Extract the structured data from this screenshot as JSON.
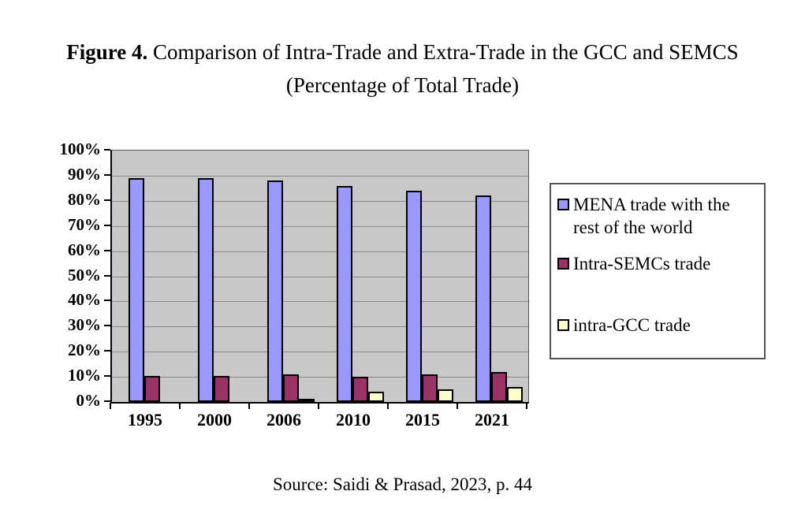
{
  "page": {
    "figure_label": "Figure 4.",
    "title_rest": " Comparison of Intra-Trade and Extra-Trade in the GCC and SEMCS",
    "title_line2": "(Percentage of Total Trade)",
    "source": "Source: Saidi & Prasad, 2023, p. 44"
  },
  "chart_data": {
    "type": "bar",
    "title": "Figure 4. Comparison of Intra-Trade and Extra-Trade in the GCC and SEMCS (Percentage of Total Trade)",
    "categories": [
      "1995",
      "2000",
      "2006",
      "2010",
      "2015",
      "2021"
    ],
    "series": [
      {
        "name": "MENA trade with the rest of the world",
        "color": "#9999FF",
        "values": [
          89,
          89,
          88,
          86,
          84,
          82
        ]
      },
      {
        "name": "Intra-SEMCs trade",
        "color": "#993366",
        "values": [
          10.5,
          10.5,
          11,
          10,
          11,
          12
        ]
      },
      {
        "name": "intra-GCC trade",
        "color": "#FFFFCC",
        "values": [
          0,
          0,
          1,
          4,
          5,
          6
        ]
      }
    ],
    "xlabel": "",
    "ylabel": "",
    "ylim": [
      0,
      100
    ],
    "ytick_step": 10,
    "ytick_labels": [
      "0%",
      "10%",
      "20%",
      "30%",
      "40%",
      "50%",
      "60%",
      "70%",
      "80%",
      "90%",
      "100%"
    ],
    "grid": true,
    "gridline_color": "#878787",
    "plot_background": "#C8C8C8",
    "bar_border_color": "#000000",
    "legend_position": "right"
  }
}
